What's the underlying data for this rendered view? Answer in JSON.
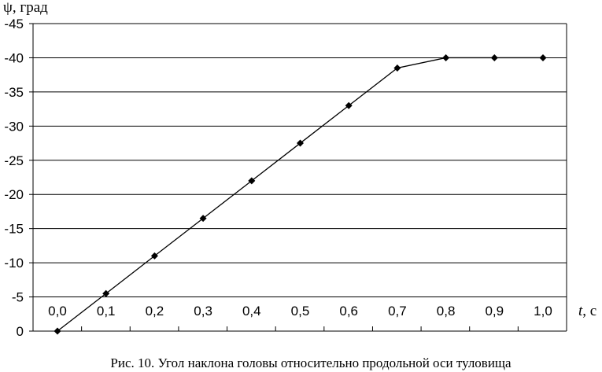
{
  "chart_data": {
    "type": "line",
    "ylabel_symbol": "ψ",
    "ylabel_unit": ", град",
    "xlabel_symbol": "t",
    "xlabel_unit": ", с",
    "caption": "Рис. 10. Угол наклона головы относительно продольной оси туловища",
    "x": [
      0.0,
      0.1,
      0.2,
      0.3,
      0.4,
      0.5,
      0.6,
      0.7,
      0.8,
      0.9,
      1.0
    ],
    "x_tick_labels": [
      "0,0",
      "0,1",
      "0,2",
      "0,3",
      "0,4",
      "0,5",
      "0,6",
      "0,7",
      "0,8",
      "0,9",
      "1,0"
    ],
    "series": [
      {
        "values": [
          0,
          -5.5,
          -11,
          -16.5,
          -22,
          -27.5,
          -33,
          -38.5,
          -40,
          -40,
          -40
        ]
      }
    ],
    "y_ticks": [
      0,
      -5,
      -10,
      -15,
      -20,
      -25,
      -30,
      -35,
      -40,
      -45
    ],
    "y_tick_labels": [
      "0",
      "-5",
      "-10",
      "-15",
      "-20",
      "-25",
      "-30",
      "-35",
      "-40",
      "-45"
    ],
    "ylim": [
      0,
      -45
    ],
    "xlim": [
      0.0,
      1.0
    ],
    "y_axis_inverted": true,
    "grid": "horizontal",
    "marker": "diamond",
    "colors": {
      "line": "#000000",
      "grid": "#000000",
      "background": "#ffffff"
    }
  }
}
